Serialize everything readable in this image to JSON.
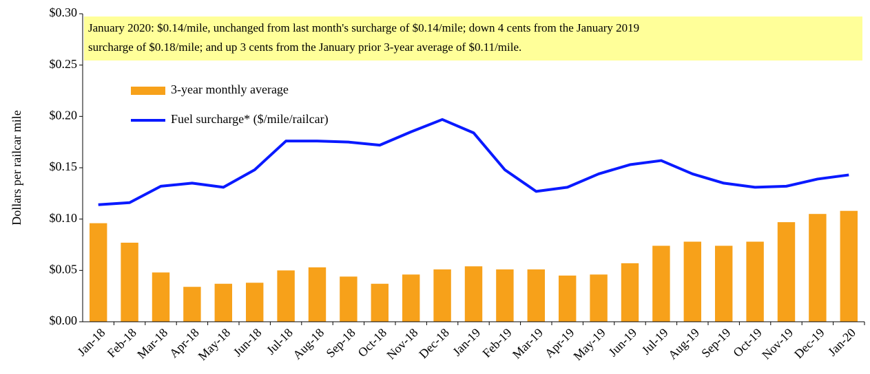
{
  "chart_data": {
    "type": "bar_line",
    "ylabel": "Dollars per railcar mile",
    "annotation": [
      "January 2020: $0.14/mile, unchanged  from last month's surcharge of $0.14/mile; down 4 cents from the January 2019",
      "surcharge of $0.18/mile; and up 3 cents from the January prior 3-year average of  $0.11/mile."
    ],
    "categories": [
      "Jan-18",
      "Feb-18",
      "Mar-18",
      "Apr-18",
      "May-18",
      "Jun-18",
      "Jul-18",
      "Aug-18",
      "Sep-18",
      "Oct-18",
      "Nov-18",
      "Dec-18",
      "Jan-19",
      "Feb-19",
      "Mar-19",
      "Apr-19",
      "May-19",
      "Jun-19",
      "Jul-19",
      "Aug-19",
      "Sep-19",
      "Oct-19",
      "Nov-19",
      "Dec-19",
      "Jan-20"
    ],
    "series": [
      {
        "name": "3-year monthly average",
        "type": "bar",
        "color": "#f7a11a",
        "values": [
          0.096,
          0.077,
          0.048,
          0.034,
          0.037,
          0.038,
          0.05,
          0.053,
          0.044,
          0.037,
          0.046,
          0.051,
          0.054,
          0.051,
          0.051,
          0.045,
          0.046,
          0.057,
          0.074,
          0.078,
          0.074,
          0.078,
          0.097,
          0.105,
          0.108
        ]
      },
      {
        "name": "Fuel surcharge* ($/mile/railcar)",
        "type": "line",
        "color": "#0a1aff",
        "values": [
          0.114,
          0.116,
          0.132,
          0.135,
          0.131,
          0.148,
          0.176,
          0.176,
          0.175,
          0.172,
          0.185,
          0.197,
          0.184,
          0.148,
          0.127,
          0.131,
          0.144,
          0.153,
          0.157,
          0.144,
          0.135,
          0.131,
          0.132,
          0.139,
          0.143
        ]
      }
    ],
    "ylim": [
      0,
      0.3
    ],
    "yticks": [
      {
        "value": 0,
        "label": "$0.00"
      },
      {
        "value": 0.05,
        "label": "$0.05"
      },
      {
        "value": 0.1,
        "label": "$0.10"
      },
      {
        "value": 0.15,
        "label": "$0.15"
      },
      {
        "value": 0.2,
        "label": "$0.20"
      },
      {
        "value": 0.25,
        "label": "$0.25"
      },
      {
        "value": 0.3,
        "label": "$0.30"
      }
    ],
    "grid": false
  }
}
